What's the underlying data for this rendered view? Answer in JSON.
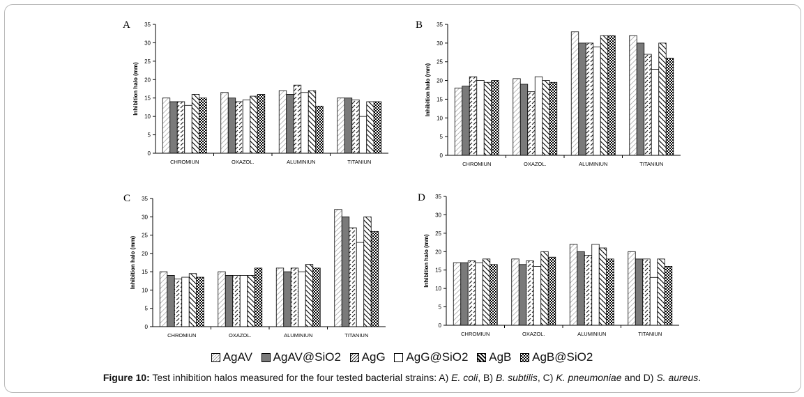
{
  "patterns": {
    "AgAV": "p-dl",
    "AgAV@SiO2": "p-gray",
    "AgG": "p-dash",
    "AgG@SiO2": "p-white",
    "AgB": "p-ddr",
    "AgB@SiO2": "p-check"
  },
  "legend": {
    "items": [
      "AgAV",
      "AgAV@SiO2",
      "AgG",
      "AgG@SiO2",
      "AgB",
      "AgB@SiO2"
    ]
  },
  "caption": {
    "label": "Figure 10:",
    "text1": " Test inhibition halos measured for the four tested bacterial strains: A) ",
    "sp1": "E. coli",
    "text2": ", B) ",
    "sp2": "B. subtilis",
    "text3": ", C) ",
    "sp3": "K. pneumoniae",
    "text4": " and D) ",
    "sp4": "S. aureus",
    "text5": "."
  },
  "chart_data": [
    {
      "panel": "A",
      "type": "bar",
      "ylabel": "Inhibition halo (mm)",
      "ylim": [
        0,
        35
      ],
      "yticks": [
        0,
        5,
        10,
        15,
        20,
        25,
        30,
        35
      ],
      "categories": [
        "CHROMIUN",
        "OXAZOL.",
        "ALUMINIUN",
        "TITANIUN"
      ],
      "series": [
        {
          "name": "AgAV",
          "values": [
            15,
            16.5,
            17,
            15
          ]
        },
        {
          "name": "AgAV@SiO2",
          "values": [
            14,
            15,
            16,
            15
          ]
        },
        {
          "name": "AgG",
          "values": [
            14,
            14,
            18.5,
            14.5
          ]
        },
        {
          "name": "AgG@SiO2",
          "values": [
            13,
            14.5,
            16.5,
            10
          ]
        },
        {
          "name": "AgB",
          "values": [
            16,
            15.5,
            17,
            14
          ]
        },
        {
          "name": "AgB@SiO2",
          "values": [
            15,
            16,
            12.8,
            14
          ]
        }
      ]
    },
    {
      "panel": "B",
      "type": "bar",
      "ylabel": "Inhibition halo (mm)",
      "ylim": [
        0,
        35
      ],
      "yticks": [
        0,
        5,
        10,
        15,
        20,
        25,
        30,
        35
      ],
      "categories": [
        "CHROMIUN",
        "OXAZOL.",
        "ALUMINIUN",
        "TITANIUN"
      ],
      "series": [
        {
          "name": "AgAV",
          "values": [
            18,
            20.5,
            33,
            32
          ]
        },
        {
          "name": "AgAV@SiO2",
          "values": [
            18.5,
            19,
            30,
            30
          ]
        },
        {
          "name": "AgG",
          "values": [
            21,
            17,
            30,
            27
          ]
        },
        {
          "name": "AgG@SiO2",
          "values": [
            20,
            21,
            29,
            23
          ]
        },
        {
          "name": "AgB",
          "values": [
            19.5,
            20,
            32,
            30
          ]
        },
        {
          "name": "AgB@SiO2",
          "values": [
            20,
            19.5,
            32,
            26
          ]
        }
      ]
    },
    {
      "panel": "C",
      "type": "bar",
      "ylabel": "Inhibition halo (mm)",
      "ylim": [
        0,
        35
      ],
      "yticks": [
        0,
        5,
        10,
        15,
        20,
        25,
        30,
        35
      ],
      "categories": [
        "CHROMIUN",
        "OXAZOL.",
        "ALUMINIUN",
        "TITANIUN"
      ],
      "series": [
        {
          "name": "AgAV",
          "values": [
            15,
            15,
            16,
            32
          ]
        },
        {
          "name": "AgAV@SiO2",
          "values": [
            14,
            14,
            15,
            30
          ]
        },
        {
          "name": "AgG",
          "values": [
            13,
            14,
            16,
            27
          ]
        },
        {
          "name": "AgG@SiO2",
          "values": [
            13.5,
            14,
            15,
            23
          ]
        },
        {
          "name": "AgB",
          "values": [
            14.5,
            14,
            17,
            30
          ]
        },
        {
          "name": "AgB@SiO2",
          "values": [
            13.5,
            16,
            16,
            26
          ]
        }
      ]
    },
    {
      "panel": "D",
      "type": "bar",
      "ylabel": "Inhibition halo (mm)",
      "ylim": [
        0,
        35
      ],
      "yticks": [
        0,
        5,
        10,
        15,
        20,
        25,
        30,
        35
      ],
      "categories": [
        "CHROMIUN",
        "OXAZOL.",
        "ALUMINIUN",
        "TITANIUN"
      ],
      "series": [
        {
          "name": "AgAV",
          "values": [
            17,
            18,
            22,
            20
          ]
        },
        {
          "name": "AgAV@SiO2",
          "values": [
            17,
            16.5,
            20,
            18
          ]
        },
        {
          "name": "AgG",
          "values": [
            17.5,
            17.5,
            19,
            18
          ]
        },
        {
          "name": "AgG@SiO2",
          "values": [
            17,
            16,
            22,
            13
          ]
        },
        {
          "name": "AgB",
          "values": [
            18,
            20,
            21,
            18
          ]
        },
        {
          "name": "AgB@SiO2",
          "values": [
            16.5,
            18.5,
            18,
            16
          ]
        }
      ]
    }
  ]
}
